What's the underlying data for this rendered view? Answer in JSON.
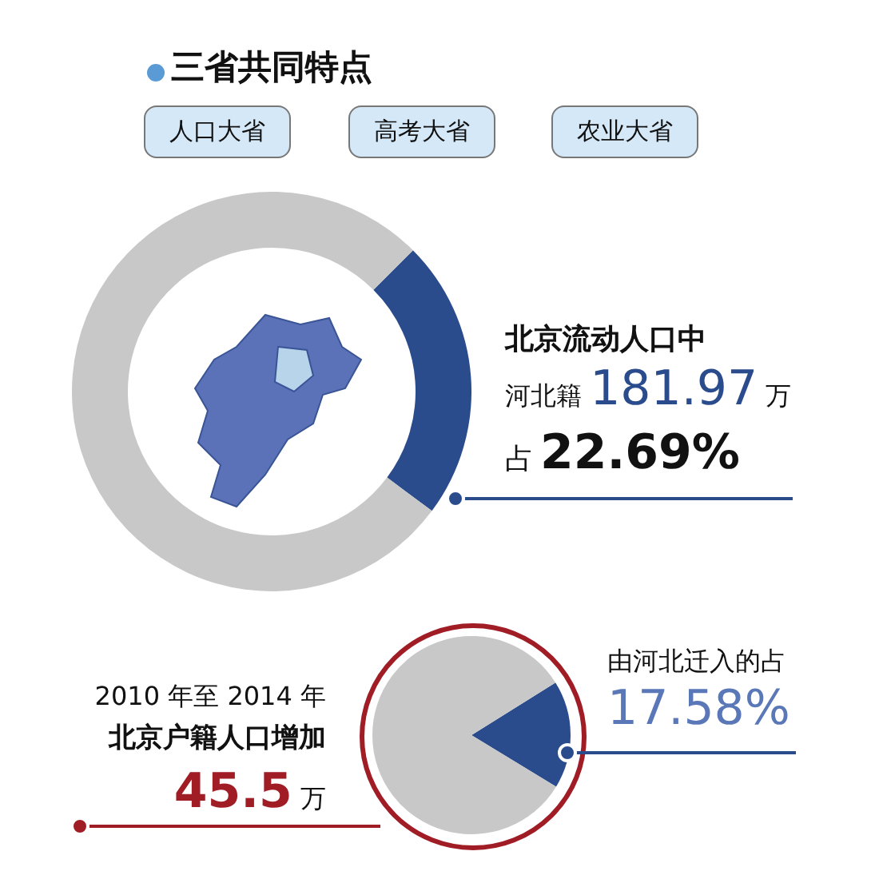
{
  "chart_data": [
    {
      "type": "donut",
      "title": "三省共同特点",
      "categories": [
        null,
        null
      ],
      "values": [
        22.69,
        77.31
      ],
      "colors": [
        "#2b4c8c",
        "#c8c8c8"
      ],
      "value_labels": [
        "22.69%",
        null
      ],
      "annotations": [
        "人口大省",
        "高考大省",
        "农业大省",
        "北京流动人口中",
        "河北籍",
        "181.97",
        "万",
        "占"
      ]
    },
    {
      "type": "pie",
      "categories": [
        null,
        null
      ],
      "values": [
        17.58,
        82.42
      ],
      "colors": [
        "#2b4c8c",
        "#c8c8c8"
      ],
      "value_labels": [
        "17.58%",
        null
      ],
      "annotations": [
        "由河北迁入的占",
        "2010 年至 2014 年",
        "北京户籍人口增加",
        "45.5",
        "万"
      ]
    }
  ]
}
